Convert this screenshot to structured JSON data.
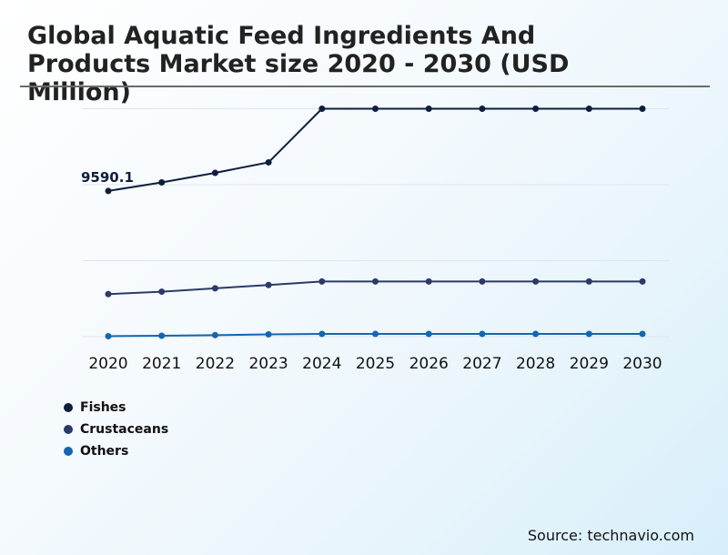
{
  "chart_data": {
    "type": "line",
    "title": "Global Aquatic Feed Ingredients And Products Market size 2020 - 2030 (USD Million)",
    "x": [
      "2020",
      "2021",
      "2022",
      "2023",
      "2024",
      "2025",
      "2026",
      "2027",
      "2028",
      "2029",
      "2030"
    ],
    "xlabel": "",
    "ylabel": "",
    "ylim": [
      0,
      15000
    ],
    "grid": true,
    "legend_position": "bottom-left",
    "series": [
      {
        "name": "Fishes",
        "color": "#0d1f3c",
        "values": [
          9590.1,
          10150,
          10780,
          11470,
          15000,
          15000,
          15000,
          15000,
          15000,
          15000,
          15000
        ]
      },
      {
        "name": "Crustaceans",
        "color": "#2b3a67",
        "values": [
          2800,
          2960,
          3180,
          3400,
          3630,
          3630,
          3630,
          3630,
          3630,
          3630,
          3630
        ]
      },
      {
        "name": "Others",
        "color": "#1565b0",
        "values": [
          30,
          60,
          100,
          150,
          180,
          180,
          180,
          180,
          180,
          180,
          180
        ]
      }
    ],
    "annotations": [
      {
        "series": "Fishes",
        "index": 0,
        "text": "9590.1"
      }
    ]
  },
  "source": "Source: technavio.com"
}
